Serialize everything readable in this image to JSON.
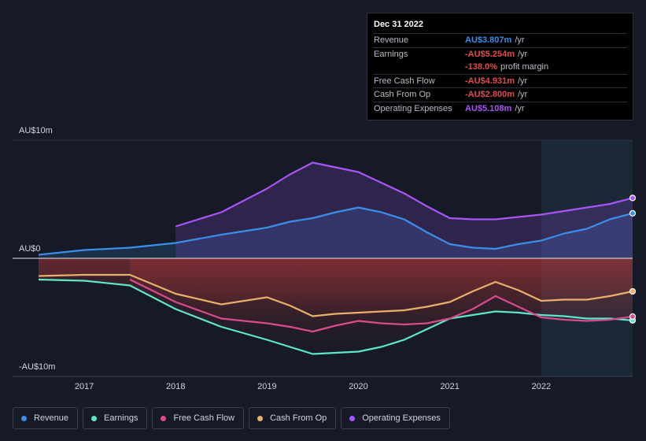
{
  "chart_data": {
    "type": "line",
    "x": [
      2016.5,
      2017,
      2017.5,
      2018,
      2018.5,
      2019,
      2019.25,
      2019.5,
      2019.75,
      2020,
      2020.25,
      2020.5,
      2020.75,
      2021,
      2021.25,
      2021.5,
      2021.75,
      2022,
      2022.25,
      2022.5,
      2022.75,
      2023
    ],
    "xlim": [
      2016.5,
      2023
    ],
    "xticks": [
      2017,
      2018,
      2019,
      2020,
      2021,
      2022
    ],
    "ylim": [
      -10,
      10
    ],
    "yticks": [
      {
        "value": 10,
        "label": "AU$10m"
      },
      {
        "value": 0,
        "label": "AU$0"
      },
      {
        "value": -10,
        "label": "-AU$10m"
      }
    ],
    "highlight_range": [
      2022,
      2023
    ],
    "series": [
      {
        "name": "Revenue",
        "color": "#3b8ee8",
        "values": [
          0.3,
          0.7,
          0.9,
          1.3,
          2.0,
          2.6,
          3.1,
          3.4,
          3.9,
          4.3,
          3.9,
          3.3,
          2.2,
          1.2,
          0.9,
          0.8,
          1.2,
          1.5,
          2.1,
          2.5,
          3.3,
          3.807
        ]
      },
      {
        "name": "Earnings",
        "color": "#5ee6c9",
        "values": [
          -1.8,
          -1.9,
          -2.3,
          -4.3,
          -5.8,
          -6.9,
          -7.5,
          -8.1,
          -8.0,
          -7.9,
          -7.5,
          -6.9,
          -6.0,
          -5.1,
          -4.8,
          -4.5,
          -4.6,
          -4.8,
          -4.9,
          -5.1,
          -5.1,
          -5.254
        ]
      },
      {
        "name": "Free Cash Flow",
        "color": "#d94b8a",
        "values": [
          null,
          null,
          -1.8,
          -3.7,
          -5.1,
          -5.5,
          -5.8,
          -6.2,
          -5.7,
          -5.3,
          -5.5,
          -5.6,
          -5.5,
          -5.1,
          -4.3,
          -3.2,
          -4.1,
          -5.0,
          -5.2,
          -5.3,
          -5.2,
          -4.931
        ]
      },
      {
        "name": "Cash From Op",
        "color": "#e8b06a",
        "values": [
          -1.5,
          -1.4,
          -1.4,
          -3.0,
          -3.9,
          -3.3,
          -4.0,
          -4.9,
          -4.7,
          -4.6,
          -4.5,
          -4.4,
          -4.1,
          -3.7,
          -2.8,
          -2.0,
          -2.7,
          -3.6,
          -3.5,
          -3.5,
          -3.2,
          -2.8
        ]
      },
      {
        "name": "Operating Expenses",
        "color": "#a855f7",
        "values": [
          null,
          null,
          null,
          2.7,
          3.9,
          5.9,
          7.1,
          8.1,
          7.7,
          7.3,
          6.4,
          5.5,
          4.4,
          3.4,
          3.3,
          3.3,
          3.5,
          3.7,
          4.0,
          4.3,
          4.6,
          5.108
        ]
      }
    ]
  },
  "tooltip": {
    "date": "Dec 31 2022",
    "rows": [
      {
        "label": "Revenue",
        "value": "AU$3.807m",
        "unit": "/yr",
        "color": "#3b8ee8"
      },
      {
        "label": "Earnings",
        "value": "-AU$5.254m",
        "unit": "/yr",
        "color": "#e5484d"
      },
      {
        "value": "-138.0%",
        "unit": "profit margin",
        "color": "#e5484d"
      },
      {
        "label": "Free Cash Flow",
        "value": "-AU$4.931m",
        "unit": "/yr",
        "color": "#e5484d"
      },
      {
        "label": "Cash From Op",
        "value": "-AU$2.800m",
        "unit": "/yr",
        "color": "#e5484d"
      },
      {
        "label": "Operating Expenses",
        "value": "AU$5.108m",
        "unit": "/yr",
        "color": "#a855f7"
      }
    ]
  }
}
